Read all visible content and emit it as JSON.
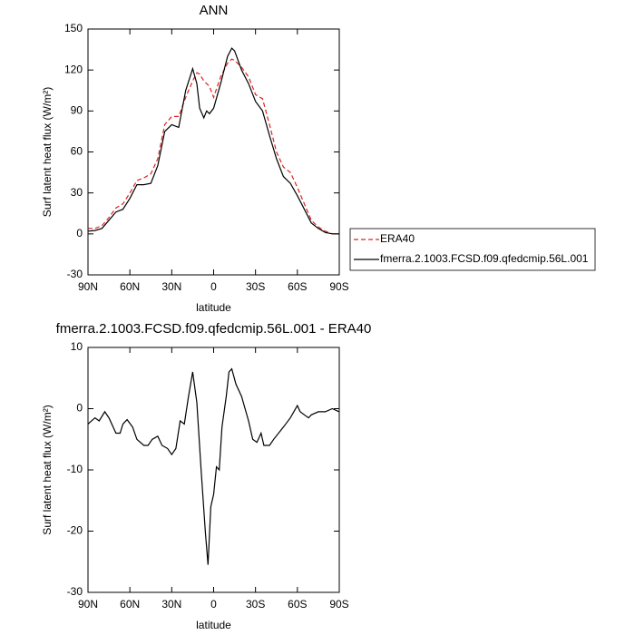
{
  "chart_data": [
    {
      "type": "line",
      "title": "ANN",
      "ylabel": "Surf latent heat flux (W/m²)",
      "xlabel": "latitude",
      "xlim": [
        90,
        -90
      ],
      "xticks": [
        {
          "value": 90,
          "label": "90N"
        },
        {
          "value": 60,
          "label": "60N"
        },
        {
          "value": 30,
          "label": "30N"
        },
        0,
        {
          "value": -30,
          "label": "30S"
        },
        {
          "value": -60,
          "label": "60S"
        },
        {
          "value": -90,
          "label": "90S"
        }
      ],
      "ylim": [
        -30,
        150
      ],
      "yticks": [
        -30,
        0,
        30,
        60,
        90,
        120,
        150
      ],
      "legend": "right",
      "x": [
        90,
        85,
        80,
        75,
        70,
        65,
        60,
        55,
        50,
        45,
        40,
        35,
        30,
        25,
        20,
        15,
        12,
        10,
        7,
        5,
        3,
        0,
        -5,
        -10,
        -13,
        -15,
        -20,
        -25,
        -30,
        -35,
        -40,
        -45,
        -50,
        -55,
        -60,
        -65,
        -70,
        -75,
        -80,
        -85,
        -90
      ],
      "series": [
        {
          "name": "ERA40",
          "color": "#e02020",
          "dash": true,
          "values": [
            4,
            4,
            6,
            12,
            19,
            22,
            30,
            39,
            41,
            44,
            55,
            80,
            86,
            86,
            100,
            112,
            118,
            117,
            112,
            110,
            108,
            100,
            115,
            125,
            128,
            127,
            122,
            115,
            102,
            99,
            80,
            60,
            49,
            45,
            34,
            22,
            10,
            5,
            2,
            0,
            0
          ]
        },
        {
          "name": "fmerra.2.1003.FCSD.f09.qfedcmip.56L.001",
          "color": "#000000",
          "dash": false,
          "values": [
            2,
            2.5,
            4,
            10,
            16,
            18,
            26,
            36,
            36,
            37,
            50,
            75,
            80,
            78,
            105,
            121,
            110,
            92,
            85,
            90,
            88,
            92,
            110,
            130,
            136,
            134,
            120,
            110,
            97,
            90,
            72,
            55,
            42,
            37,
            28,
            18,
            8,
            4,
            1,
            0,
            0
          ]
        }
      ]
    },
    {
      "type": "line",
      "title": "fmerra.2.1003.FCSD.f09.qfedcmip.56L.001 - ERA40",
      "ylabel": "Surf latent heat flux (W/m²)",
      "xlabel": "latitude",
      "xlim": [
        90,
        -90
      ],
      "xticks": [
        {
          "value": 90,
          "label": "90N"
        },
        {
          "value": 60,
          "label": "60N"
        },
        {
          "value": 30,
          "label": "30N"
        },
        0,
        {
          "value": -30,
          "label": "30S"
        },
        {
          "value": -60,
          "label": "60S"
        },
        {
          "value": -90,
          "label": "90S"
        }
      ],
      "ylim": [
        -30,
        10
      ],
      "yticks": [
        -30,
        -20,
        -10,
        0,
        10
      ],
      "x": [
        90,
        85,
        82,
        78,
        75,
        70,
        67,
        65,
        62,
        58,
        55,
        50,
        47,
        44,
        40,
        37,
        33,
        30,
        27,
        24,
        21,
        18,
        15,
        12,
        9,
        6,
        4,
        2,
        0,
        -2,
        -4,
        -6,
        -9,
        -11,
        -13,
        -16,
        -20,
        -25,
        -28,
        -31,
        -34,
        -36,
        -40,
        -43,
        -50,
        -55,
        -60,
        -62,
        -65,
        -68,
        -70,
        -75,
        -80,
        -85,
        -90
      ],
      "series": [
        {
          "color": "#000000",
          "dash": false,
          "values": [
            -2.5,
            -1.5,
            -2,
            -0.5,
            -1.5,
            -4,
            -4,
            -2.5,
            -1.8,
            -3,
            -5,
            -6,
            -6,
            -5,
            -4.5,
            -6,
            -6.5,
            -7.5,
            -6.5,
            -2,
            -2.5,
            2,
            6,
            1,
            -10,
            -20,
            -25.5,
            -16,
            -14,
            -9.5,
            -10,
            -3,
            2,
            6,
            6.5,
            4,
            2,
            -2,
            -5,
            -5.5,
            -4,
            -6,
            -6,
            -5,
            -3,
            -1.5,
            0.5,
            -0.5,
            -1,
            -1.5,
            -1,
            -0.5,
            -0.5,
            0,
            -0.5
          ]
        }
      ]
    }
  ]
}
